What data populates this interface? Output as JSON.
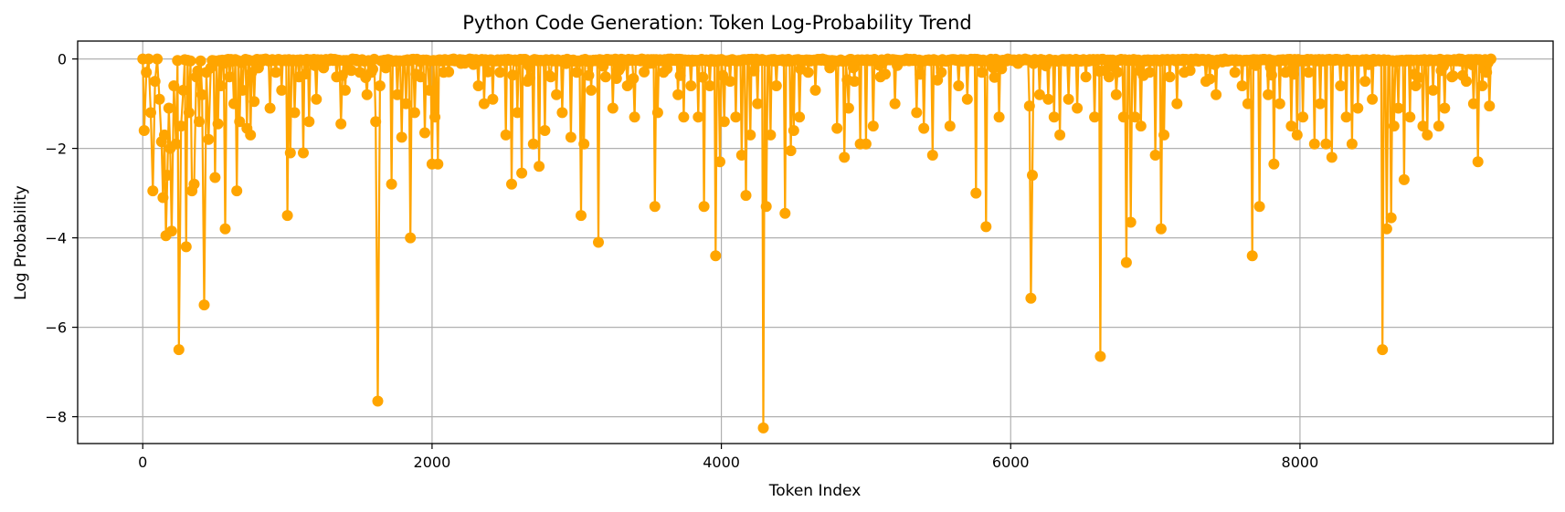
{
  "chart_data": {
    "type": "line",
    "title": "Python Code Generation: Token Log-Probability Trend",
    "xlabel": "Token Index",
    "ylabel": "Log Probability",
    "xlim": [
      -450,
      9750
    ],
    "ylim": [
      -8.6,
      0.4
    ],
    "xticks": [
      0,
      2000,
      4000,
      6000,
      8000
    ],
    "yticks": [
      0,
      -2,
      -4,
      -6,
      -8
    ],
    "grid": true,
    "series": [
      {
        "color": "#FFA500",
        "marker": "circle",
        "points": [
          [
            0,
            0
          ],
          [
            10,
            -1.6
          ],
          [
            25,
            -0.3
          ],
          [
            40,
            0
          ],
          [
            55,
            -1.2
          ],
          [
            70,
            -2.95
          ],
          [
            85,
            -0.5
          ],
          [
            100,
            0
          ],
          [
            115,
            -0.9
          ],
          [
            130,
            -1.85
          ],
          [
            140,
            -3.1
          ],
          [
            150,
            -1.7
          ],
          [
            160,
            -3.95
          ],
          [
            170,
            -2.6
          ],
          [
            180,
            -1.1
          ],
          [
            190,
            -2.0
          ],
          [
            200,
            -3.85
          ],
          [
            215,
            -0.6
          ],
          [
            230,
            -1.9
          ],
          [
            250,
            -6.5
          ],
          [
            265,
            -1.5
          ],
          [
            280,
            -0.7
          ],
          [
            300,
            -4.2
          ],
          [
            320,
            -1.2
          ],
          [
            340,
            -2.95
          ],
          [
            355,
            -2.8
          ],
          [
            370,
            -0.4
          ],
          [
            390,
            -1.4
          ],
          [
            410,
            -0.8
          ],
          [
            425,
            -5.5
          ],
          [
            440,
            -0.3
          ],
          [
            455,
            -1.8
          ],
          [
            470,
            -0.2
          ],
          [
            500,
            -2.65
          ],
          [
            520,
            -1.45
          ],
          [
            540,
            -0.6
          ],
          [
            570,
            -3.8
          ],
          [
            600,
            -0.4
          ],
          [
            630,
            -1.0
          ],
          [
            650,
            -2.95
          ],
          [
            670,
            -1.4
          ],
          [
            690,
            -0.7
          ],
          [
            720,
            -1.55
          ],
          [
            745,
            -1.7
          ],
          [
            770,
            -0.95
          ],
          [
            800,
            -0.2
          ],
          [
            850,
            0
          ],
          [
            880,
            -1.1
          ],
          [
            920,
            -0.3
          ],
          [
            960,
            -0.7
          ],
          [
            1000,
            -3.5
          ],
          [
            1020,
            -2.1
          ],
          [
            1050,
            -1.2
          ],
          [
            1080,
            -0.4
          ],
          [
            1110,
            -2.1
          ],
          [
            1150,
            -1.4
          ],
          [
            1200,
            -0.9
          ],
          [
            1250,
            -0.2
          ],
          [
            1300,
            0
          ],
          [
            1340,
            -0.4
          ],
          [
            1370,
            -1.45
          ],
          [
            1400,
            -0.7
          ],
          [
            1450,
            0
          ],
          [
            1500,
            -0.3
          ],
          [
            1550,
            -0.8
          ],
          [
            1580,
            -0.3
          ],
          [
            1610,
            -1.4
          ],
          [
            1625,
            -7.65
          ],
          [
            1640,
            -0.6
          ],
          [
            1680,
            -0.2
          ],
          [
            1720,
            -2.8
          ],
          [
            1760,
            -0.8
          ],
          [
            1790,
            -1.75
          ],
          [
            1820,
            -1.0
          ],
          [
            1850,
            -4.0
          ],
          [
            1880,
            -1.2
          ],
          [
            1920,
            -0.4
          ],
          [
            1950,
            -1.65
          ],
          [
            1980,
            -0.7
          ],
          [
            2000,
            -2.35
          ],
          [
            2020,
            -1.3
          ],
          [
            2040,
            -2.35
          ],
          [
            2080,
            -0.3
          ],
          [
            2150,
            0
          ],
          [
            2200,
            -0.1
          ],
          [
            2260,
            0
          ],
          [
            2320,
            -0.6
          ],
          [
            2360,
            -1.0
          ],
          [
            2420,
            -0.9
          ],
          [
            2470,
            -0.3
          ],
          [
            2510,
            -1.7
          ],
          [
            2550,
            -2.8
          ],
          [
            2590,
            -1.2
          ],
          [
            2620,
            -2.55
          ],
          [
            2660,
            -0.5
          ],
          [
            2700,
            -1.9
          ],
          [
            2740,
            -2.4
          ],
          [
            2780,
            -1.6
          ],
          [
            2820,
            -0.4
          ],
          [
            2860,
            -0.8
          ],
          [
            2900,
            -1.2
          ],
          [
            2960,
            -1.75
          ],
          [
            3000,
            -0.3
          ],
          [
            3030,
            -3.5
          ],
          [
            3050,
            -1.9
          ],
          [
            3100,
            -0.7
          ],
          [
            3150,
            -4.1
          ],
          [
            3200,
            -0.4
          ],
          [
            3250,
            -1.1
          ],
          [
            3300,
            -0.2
          ],
          [
            3350,
            -0.6
          ],
          [
            3400,
            -1.3
          ],
          [
            3450,
            0
          ],
          [
            3500,
            -0.1
          ],
          [
            3540,
            -3.3
          ],
          [
            3560,
            -1.2
          ],
          [
            3600,
            -0.3
          ],
          [
            3650,
            0
          ],
          [
            3700,
            -0.8
          ],
          [
            3740,
            -1.3
          ],
          [
            3790,
            -0.6
          ],
          [
            3840,
            -1.3
          ],
          [
            3880,
            -3.3
          ],
          [
            3920,
            -0.6
          ],
          [
            3960,
            -4.4
          ],
          [
            3990,
            -2.3
          ],
          [
            4020,
            -1.4
          ],
          [
            4060,
            -0.5
          ],
          [
            4100,
            -1.3
          ],
          [
            4140,
            -2.15
          ],
          [
            4170,
            -3.05
          ],
          [
            4200,
            -1.7
          ],
          [
            4250,
            -1.0
          ],
          [
            4290,
            -8.25
          ],
          [
            4310,
            -3.3
          ],
          [
            4340,
            -1.7
          ],
          [
            4380,
            -0.6
          ],
          [
            4440,
            -3.45
          ],
          [
            4480,
            -2.05
          ],
          [
            4500,
            -1.6
          ],
          [
            4540,
            -1.3
          ],
          [
            4600,
            -0.3
          ],
          [
            4650,
            -0.7
          ],
          [
            4700,
            0
          ],
          [
            4750,
            -0.2
          ],
          [
            4800,
            -1.55
          ],
          [
            4850,
            -2.2
          ],
          [
            4880,
            -1.1
          ],
          [
            4920,
            -0.5
          ],
          [
            4960,
            -1.9
          ],
          [
            5000,
            -1.9
          ],
          [
            5050,
            -1.5
          ],
          [
            5100,
            -0.4
          ],
          [
            5150,
            0
          ],
          [
            5200,
            -1.0
          ],
          [
            5280,
            0
          ],
          [
            5350,
            -1.2
          ],
          [
            5400,
            -1.55
          ],
          [
            5460,
            -2.15
          ],
          [
            5520,
            -0.3
          ],
          [
            5580,
            -1.5
          ],
          [
            5640,
            -0.6
          ],
          [
            5700,
            -0.9
          ],
          [
            5760,
            -3.0
          ],
          [
            5800,
            -0.3
          ],
          [
            5830,
            -3.75
          ],
          [
            5880,
            -0.2
          ],
          [
            5920,
            -1.3
          ],
          [
            5980,
            0
          ],
          [
            6050,
            -0.1
          ],
          [
            6100,
            0
          ],
          [
            6130,
            -1.05
          ],
          [
            6140,
            -5.35
          ],
          [
            6150,
            -2.6
          ],
          [
            6200,
            -0.8
          ],
          [
            6260,
            -0.9
          ],
          [
            6300,
            -1.3
          ],
          [
            6340,
            -1.7
          ],
          [
            6400,
            -0.9
          ],
          [
            6460,
            -1.1
          ],
          [
            6520,
            -0.4
          ],
          [
            6580,
            -1.3
          ],
          [
            6620,
            -6.65
          ],
          [
            6680,
            -0.4
          ],
          [
            6730,
            -0.8
          ],
          [
            6780,
            -1.3
          ],
          [
            6800,
            -4.55
          ],
          [
            6830,
            -3.65
          ],
          [
            6860,
            -1.3
          ],
          [
            6900,
            -1.5
          ],
          [
            6960,
            -0.3
          ],
          [
            7000,
            -2.15
          ],
          [
            7040,
            -3.8
          ],
          [
            7060,
            -1.7
          ],
          [
            7100,
            -0.4
          ],
          [
            7150,
            -1.0
          ],
          [
            7200,
            -0.3
          ],
          [
            7280,
            0
          ],
          [
            7350,
            -0.5
          ],
          [
            7420,
            -0.8
          ],
          [
            7480,
            0
          ],
          [
            7550,
            -0.3
          ],
          [
            7600,
            -0.6
          ],
          [
            7640,
            -1.0
          ],
          [
            7670,
            -4.4
          ],
          [
            7720,
            -3.3
          ],
          [
            7780,
            -0.8
          ],
          [
            7820,
            -2.35
          ],
          [
            7860,
            -1.0
          ],
          [
            7900,
            -0.3
          ],
          [
            7940,
            -1.5
          ],
          [
            7980,
            -1.7
          ],
          [
            8020,
            -1.3
          ],
          [
            8060,
            -0.3
          ],
          [
            8100,
            -1.9
          ],
          [
            8140,
            -1.0
          ],
          [
            8180,
            -1.9
          ],
          [
            8220,
            -2.2
          ],
          [
            8280,
            -0.6
          ],
          [
            8320,
            -1.3
          ],
          [
            8360,
            -1.9
          ],
          [
            8400,
            -1.1
          ],
          [
            8450,
            -0.5
          ],
          [
            8500,
            -0.9
          ],
          [
            8570,
            -6.5
          ],
          [
            8600,
            -3.8
          ],
          [
            8630,
            -3.55
          ],
          [
            8650,
            -1.5
          ],
          [
            8680,
            -1.1
          ],
          [
            8720,
            -2.7
          ],
          [
            8760,
            -1.3
          ],
          [
            8800,
            -0.6
          ],
          [
            8850,
            -1.5
          ],
          [
            8880,
            -1.7
          ],
          [
            8920,
            -0.7
          ],
          [
            8960,
            -1.5
          ],
          [
            9000,
            -1.1
          ],
          [
            9050,
            -0.4
          ],
          [
            9100,
            0
          ],
          [
            9150,
            -0.5
          ],
          [
            9200,
            -1.0
          ],
          [
            9230,
            -2.3
          ],
          [
            9260,
            -0.6
          ],
          [
            9290,
            -0.3
          ],
          [
            9310,
            -1.05
          ],
          [
            9320,
            0
          ]
        ]
      }
    ]
  }
}
